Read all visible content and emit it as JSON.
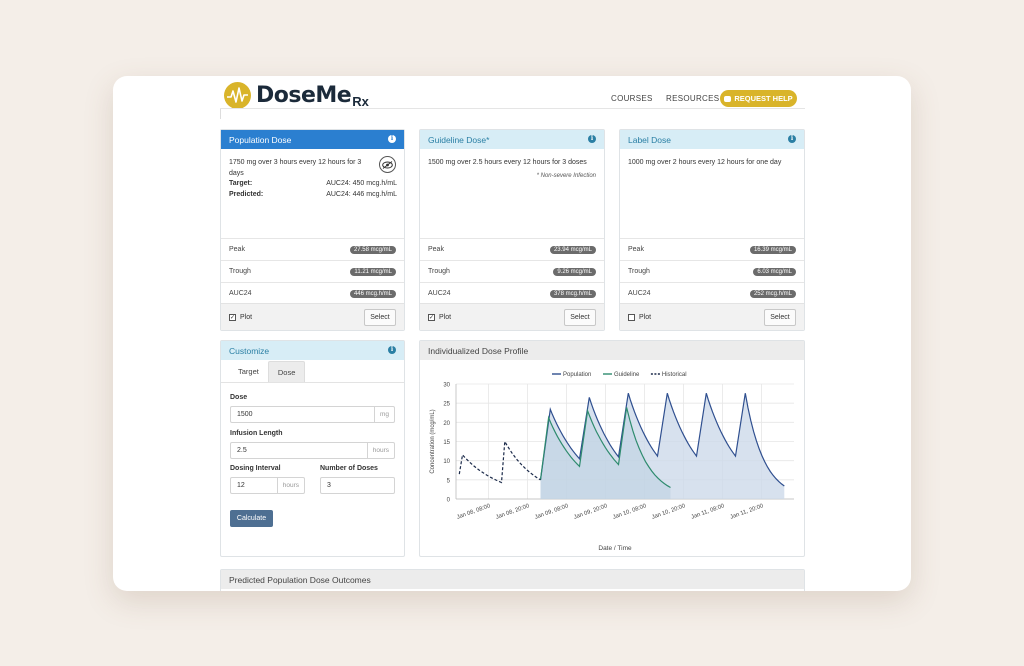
{
  "brand": {
    "name": "DoseMe",
    "suffix": "Rx",
    "accent": "#d9b42a"
  },
  "nav": {
    "courses": "COURSES",
    "resources": "RESOURCES",
    "help": "REQUEST HELP"
  },
  "population": {
    "title": "Population Dose",
    "description": "1750 mg over 3 hours every 12 hours for 3 days",
    "target_label": "Target:",
    "target_value": "AUC24: 450 mcg.h/mL",
    "predicted_label": "Predicted:",
    "predicted_value": "AUC24: 446 mcg.h/mL",
    "peak_label": "Peak",
    "peak": "27.58 mcg/mL",
    "trough_label": "Trough",
    "trough": "11.21 mcg/mL",
    "auc_label": "AUC24",
    "auc": "446 mcg.h/mL",
    "plot_label": "Plot",
    "plot_checked": true,
    "select_label": "Select"
  },
  "guideline": {
    "title": "Guideline Dose*",
    "description": "1500 mg over 2.5 hours every 12 hours for 3 doses",
    "note": "* Non-severe Infection",
    "peak_label": "Peak",
    "peak": "23.94 mcg/mL",
    "trough_label": "Trough",
    "trough": "9.26 mcg/mL",
    "auc_label": "AUC24",
    "auc": "378 mcg.h/mL",
    "plot_label": "Plot",
    "plot_checked": true,
    "select_label": "Select"
  },
  "label": {
    "title": "Label Dose",
    "description": "1000 mg over 2 hours every 12 hours for one day",
    "peak_label": "Peak",
    "peak": "16.39 mcg/mL",
    "trough_label": "Trough",
    "trough": "6.03 mcg/mL",
    "auc_label": "AUC24",
    "auc": "252 mcg.h/mL",
    "plot_label": "Plot",
    "plot_checked": false,
    "select_label": "Select"
  },
  "customize": {
    "title": "Customize",
    "tabs": [
      "Target",
      "Dose"
    ],
    "active_tab": "Dose",
    "dose_label": "Dose",
    "dose_value": "1500",
    "dose_unit": "mg",
    "infusion_label": "Infusion Length",
    "infusion_value": "2.5",
    "infusion_unit": "hours",
    "interval_label": "Dosing Interval",
    "interval_value": "12",
    "interval_unit": "hours",
    "doses_label": "Number of Doses",
    "doses_value": "3",
    "calculate_label": "Calculate"
  },
  "profile": {
    "title": "Individualized Dose Profile"
  },
  "outcomes": {
    "title": "Predicted Population Dose Outcomes"
  },
  "chart_data": {
    "type": "line",
    "xlabel": "Date / Time",
    "ylabel": "Concentration (mcg/mL)",
    "ylim": [
      0,
      30
    ],
    "yticks": [
      0,
      5,
      10,
      15,
      20,
      25,
      30
    ],
    "xticks": [
      "Jan 08, 08:00",
      "Jan 08, 20:00",
      "Jan 09, 08:00",
      "Jan 09, 20:00",
      "Jan 10, 08:00",
      "Jan 10, 20:00",
      "Jan 11, 08:00",
      "Jan 11, 20:00"
    ],
    "grid": true,
    "legend_position": "top",
    "series": [
      {
        "name": "Population",
        "color": "#2f4f8f",
        "style": "solid",
        "points": [
          [
            "Jan 09, 00:00",
            5
          ],
          [
            "Jan 09, 03:00",
            23.4
          ],
          [
            "Jan 09, 12:00",
            10.5
          ],
          [
            "Jan 09, 15:00",
            26.5
          ],
          [
            "Jan 10, 00:00",
            11.0
          ],
          [
            "Jan 10, 03:00",
            27.6
          ],
          [
            "Jan 10, 12:00",
            11.2
          ],
          [
            "Jan 10, 15:00",
            27.6
          ],
          [
            "Jan 11, 00:00",
            11.2
          ],
          [
            "Jan 11, 03:00",
            27.6
          ],
          [
            "Jan 11, 12:00",
            11.2
          ],
          [
            "Jan 11, 15:00",
            27.6
          ],
          [
            "Jan 12, 03:00",
            3.4
          ]
        ]
      },
      {
        "name": "Guideline",
        "color": "#2e8b6e",
        "style": "solid",
        "points": [
          [
            "Jan 09, 00:00",
            5
          ],
          [
            "Jan 09, 02:30",
            21.2
          ],
          [
            "Jan 09, 12:00",
            8.5
          ],
          [
            "Jan 09, 14:30",
            23.0
          ],
          [
            "Jan 10, 00:00",
            9.0
          ],
          [
            "Jan 10, 02:30",
            23.9
          ],
          [
            "Jan 10, 16:00",
            3.0
          ]
        ]
      },
      {
        "name": "Historical",
        "color": "#1b2a4a",
        "style": "dashed",
        "points": [
          [
            "Jan 07, 23:00",
            6.5
          ],
          [
            "Jan 08, 00:00",
            11.5
          ],
          [
            "Jan 08, 12:00",
            4.3
          ],
          [
            "Jan 08, 13:00",
            15.0
          ],
          [
            "Jan 09, 00:00",
            5.0
          ]
        ]
      }
    ]
  }
}
